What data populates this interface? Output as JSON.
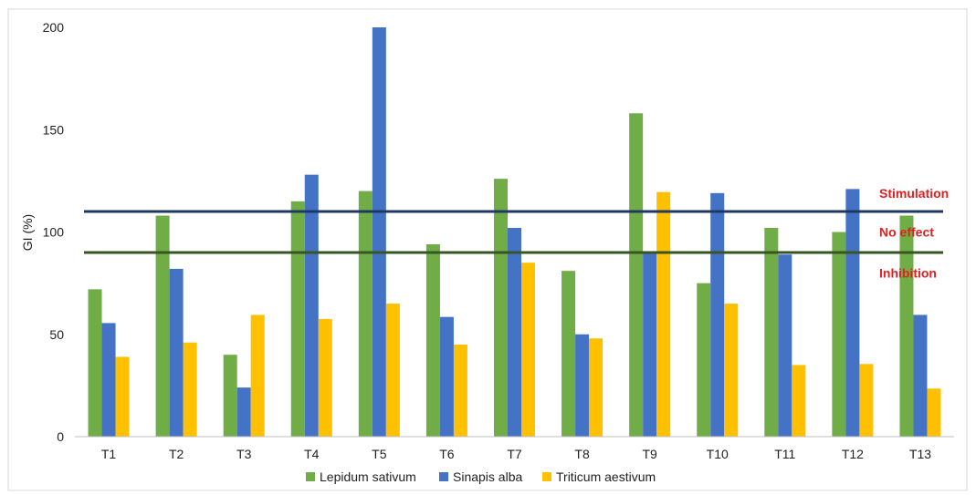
{
  "chart_data": {
    "type": "bar",
    "title": "",
    "xlabel": "",
    "ylabel": "GI (%)",
    "ylim": [
      0,
      200
    ],
    "yticks": [
      0,
      50,
      100,
      150,
      200
    ],
    "grid": false,
    "legend_position": "bottom",
    "categories": [
      "T1",
      "T2",
      "T3",
      "T4",
      "T5",
      "T6",
      "T7",
      "T8",
      "T9",
      "T10",
      "T11",
      "T12",
      "T13"
    ],
    "series": [
      {
        "name": "Lepidum sativum",
        "color": "#70ad47",
        "values": [
          72,
          108,
          40,
          115,
          120,
          94,
          126,
          81,
          158,
          75,
          102,
          100,
          108
        ]
      },
      {
        "name": "Sinapis alba",
        "color": "#4472c4",
        "values": [
          55.5,
          82,
          24,
          128,
          200,
          58.5,
          102,
          50,
          90,
          119,
          89,
          121,
          59.5
        ]
      },
      {
        "name": "Triticum aestivum",
        "color": "#ffc000",
        "values": [
          39,
          46,
          59.5,
          57.5,
          65,
          45,
          85,
          48,
          119.5,
          65,
          35,
          35.5,
          23.5
        ]
      }
    ],
    "reference_lines": [
      {
        "value": 110,
        "color": "#203864"
      },
      {
        "value": 90,
        "color": "#375623"
      }
    ],
    "annotations": [
      {
        "text": "Stimulation",
        "value": 119,
        "color": "#e02020"
      },
      {
        "text": "No effect",
        "value": 100,
        "color": "#e02020"
      },
      {
        "text": "Inhibition",
        "value": 80,
        "color": "#e02020"
      }
    ]
  }
}
